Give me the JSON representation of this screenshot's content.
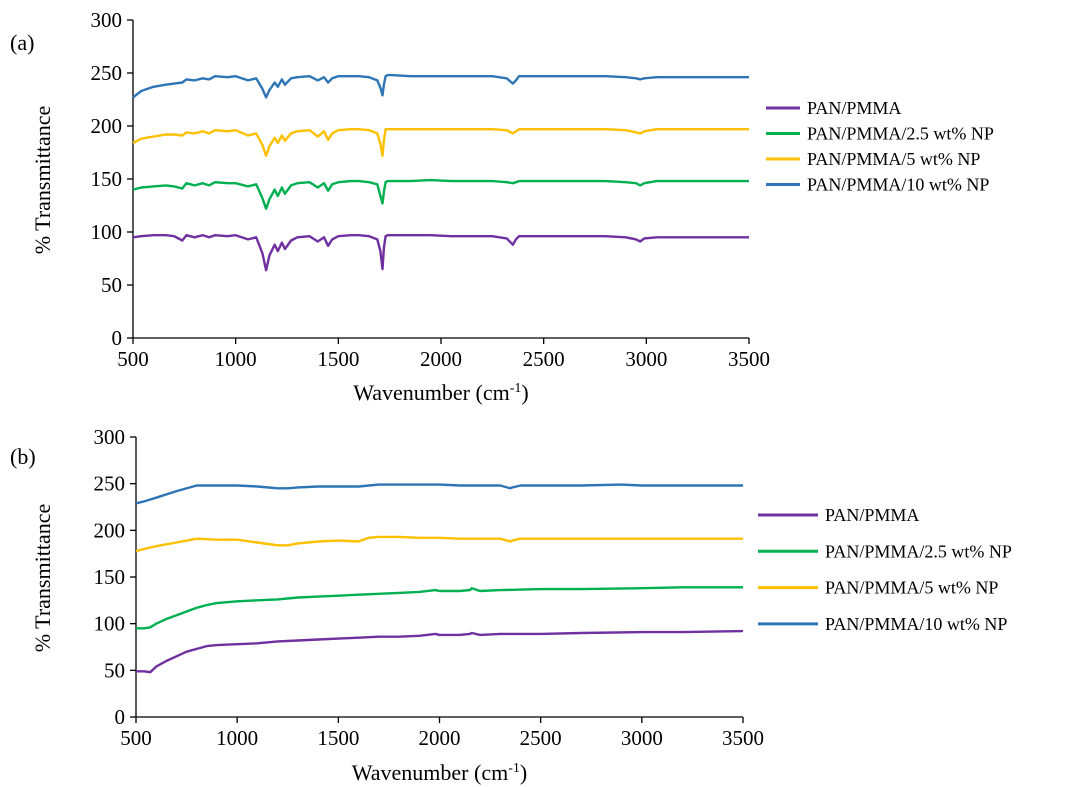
{
  "chart_data": [
    {
      "type": "line",
      "panel_label": "(a)",
      "xlabel": "Wavenumber (cm",
      "xlabel_sup": "-1",
      "xlabel_end": ")",
      "ylabel": "% Transmittance",
      "xlim": [
        500,
        3500
      ],
      "ylim": [
        0,
        300
      ],
      "xticks": [
        "500",
        "1000",
        "1500",
        "2000",
        "2500",
        "3000",
        "3500"
      ],
      "yticks": [
        "0",
        "50",
        "100",
        "150",
        "200",
        "250",
        "300"
      ],
      "grid": false,
      "legend_position": "right",
      "legend": [
        "PAN/PMMA",
        "PAN/PMMA/2.5 wt% NP",
        "PAN/PMMA/5 wt% NP",
        "PAN/PMMA/10 wt% NP"
      ],
      "series": [
        {
          "name": "PAN/PMMA",
          "color": "#7030a0",
          "x": [
            500,
            540,
            600,
            660,
            700,
            740,
            760,
            800,
            840,
            870,
            900,
            960,
            1000,
            1060,
            1100,
            1130,
            1148,
            1165,
            1190,
            1205,
            1225,
            1240,
            1270,
            1300,
            1360,
            1400,
            1430,
            1450,
            1470,
            1500,
            1560,
            1600,
            1650,
            1690,
            1705,
            1715,
            1722,
            1730,
            1740,
            1760,
            1850,
            1950,
            2050,
            2150,
            2250,
            2320,
            2350,
            2365,
            2380,
            2450,
            2600,
            2800,
            2900,
            2950,
            2970,
            2990,
            3050,
            3200,
            3350,
            3500
          ],
          "y": [
            95,
            96,
            97,
            97,
            96,
            92,
            97,
            95,
            97,
            95,
            97,
            96,
            97,
            93,
            95,
            80,
            64,
            78,
            88,
            82,
            90,
            84,
            92,
            95,
            96,
            91,
            95,
            87,
            93,
            96,
            97,
            97,
            96,
            93,
            82,
            65,
            85,
            96,
            97,
            97,
            97,
            97,
            96,
            96,
            96,
            94,
            88,
            93,
            96,
            96,
            96,
            96,
            95,
            93,
            91,
            94,
            95,
            95,
            95,
            95
          ]
        },
        {
          "name": "PAN/PMMA/2.5 wt% NP",
          "color": "#00b050",
          "x": [
            500,
            540,
            600,
            660,
            700,
            740,
            760,
            800,
            840,
            870,
            900,
            960,
            1000,
            1060,
            1100,
            1130,
            1148,
            1165,
            1190,
            1205,
            1225,
            1240,
            1270,
            1300,
            1360,
            1400,
            1430,
            1450,
            1470,
            1500,
            1560,
            1600,
            1650,
            1690,
            1705,
            1715,
            1722,
            1730,
            1740,
            1760,
            1850,
            1950,
            2050,
            2150,
            2250,
            2320,
            2350,
            2365,
            2380,
            2450,
            2600,
            2800,
            2900,
            2950,
            2970,
            2990,
            3050,
            3200,
            3350,
            3500
          ],
          "y": [
            140,
            142,
            143,
            144,
            143,
            141,
            146,
            144,
            146,
            144,
            147,
            146,
            146,
            143,
            145,
            132,
            122,
            131,
            140,
            134,
            142,
            136,
            144,
            146,
            147,
            142,
            146,
            139,
            145,
            147,
            148,
            148,
            147,
            145,
            134,
            127,
            138,
            147,
            148,
            148,
            148,
            149,
            148,
            148,
            148,
            147,
            146,
            147,
            148,
            148,
            148,
            148,
            147,
            146,
            144,
            146,
            148,
            148,
            148,
            148
          ]
        },
        {
          "name": "PAN/PMMA/5 wt% NP",
          "color": "#ffc000",
          "x": [
            500,
            540,
            600,
            660,
            700,
            740,
            760,
            800,
            840,
            870,
            900,
            960,
            1000,
            1060,
            1100,
            1130,
            1148,
            1165,
            1190,
            1205,
            1225,
            1240,
            1270,
            1300,
            1360,
            1400,
            1430,
            1450,
            1470,
            1500,
            1560,
            1600,
            1650,
            1690,
            1705,
            1715,
            1722,
            1730,
            1740,
            1760,
            1850,
            1950,
            2050,
            2150,
            2250,
            2320,
            2350,
            2365,
            2380,
            2450,
            2600,
            2800,
            2900,
            2950,
            2970,
            2990,
            3050,
            3200,
            3350,
            3500
          ],
          "y": [
            184,
            188,
            190,
            192,
            192,
            191,
            194,
            193,
            195,
            193,
            196,
            195,
            196,
            191,
            193,
            182,
            172,
            181,
            189,
            184,
            191,
            186,
            193,
            195,
            196,
            190,
            195,
            187,
            193,
            196,
            197,
            197,
            196,
            193,
            183,
            172,
            186,
            197,
            197,
            197,
            197,
            197,
            197,
            197,
            197,
            196,
            193,
            195,
            197,
            197,
            197,
            197,
            196,
            194,
            193,
            195,
            197,
            197,
            197,
            197
          ]
        },
        {
          "name": "PAN/PMMA/10 wt% NP",
          "color": "#2e75b6",
          "x": [
            500,
            540,
            600,
            660,
            700,
            740,
            760,
            800,
            840,
            870,
            900,
            960,
            1000,
            1060,
            1100,
            1130,
            1148,
            1165,
            1190,
            1205,
            1225,
            1240,
            1270,
            1300,
            1360,
            1400,
            1430,
            1450,
            1470,
            1500,
            1560,
            1600,
            1650,
            1690,
            1705,
            1715,
            1722,
            1730,
            1740,
            1760,
            1850,
            1950,
            2050,
            2150,
            2250,
            2320,
            2350,
            2365,
            2380,
            2450,
            2600,
            2800,
            2900,
            2950,
            2970,
            2990,
            3050,
            3200,
            3350,
            3500
          ],
          "y": [
            227,
            233,
            237,
            239,
            240,
            241,
            244,
            243,
            245,
            244,
            247,
            246,
            247,
            243,
            245,
            235,
            227,
            234,
            241,
            237,
            244,
            239,
            245,
            246,
            247,
            243,
            246,
            241,
            245,
            247,
            247,
            247,
            246,
            243,
            236,
            229,
            239,
            247,
            248,
            248,
            247,
            247,
            247,
            247,
            247,
            245,
            240,
            243,
            247,
            247,
            247,
            247,
            246,
            245,
            244,
            245,
            246,
            246,
            246,
            246
          ]
        }
      ]
    },
    {
      "type": "line",
      "panel_label": "(b)",
      "xlabel": "Wavenumber (cm",
      "xlabel_sup": "-1",
      "xlabel_end": ")",
      "ylabel": "% Transmittance",
      "xlim": [
        500,
        3500
      ],
      "ylim": [
        0,
        300
      ],
      "xticks": [
        "500",
        "1000",
        "1500",
        "2000",
        "2500",
        "3000",
        "3500"
      ],
      "yticks": [
        "0",
        "50",
        "100",
        "150",
        "200",
        "250",
        "300"
      ],
      "grid": false,
      "legend_position": "right",
      "legend": [
        "PAN/PMMA",
        "PAN/PMMA/2.5 wt% NP",
        "PAN/PMMA/5 wt% NP",
        "PAN/PMMA/10 wt% NP"
      ],
      "series": [
        {
          "name": "PAN/PMMA",
          "color": "#7030a0",
          "x": [
            500,
            540,
            570,
            600,
            650,
            700,
            750,
            800,
            850,
            900,
            1000,
            1100,
            1200,
            1300,
            1400,
            1500,
            1600,
            1700,
            1800,
            1900,
            1980,
            2000,
            2100,
            2150,
            2160,
            2200,
            2300,
            2500,
            2700,
            3000,
            3200,
            3500
          ],
          "y": [
            49,
            49,
            48,
            54,
            60,
            65,
            70,
            73,
            76,
            77,
            78,
            79,
            81,
            82,
            83,
            84,
            85,
            86,
            86,
            87,
            89,
            88,
            88,
            89,
            90,
            88,
            89,
            89,
            90,
            91,
            91,
            92
          ]
        },
        {
          "name": "PAN/PMMA/2.5 wt% NP",
          "color": "#00b050",
          "x": [
            500,
            540,
            570,
            600,
            650,
            700,
            750,
            800,
            850,
            900,
            1000,
            1100,
            1200,
            1300,
            1400,
            1500,
            1600,
            1700,
            1800,
            1900,
            1980,
            2000,
            2100,
            2150,
            2160,
            2200,
            2300,
            2500,
            2700,
            3000,
            3200,
            3500
          ],
          "y": [
            95,
            95,
            96,
            100,
            105,
            109,
            113,
            117,
            120,
            122,
            124,
            125,
            126,
            128,
            129,
            130,
            131,
            132,
            133,
            134,
            136,
            135,
            135,
            136,
            138,
            135,
            136,
            137,
            137,
            138,
            139,
            139
          ]
        },
        {
          "name": "PAN/PMMA/5 wt% NP",
          "color": "#ffc000",
          "x": [
            500,
            540,
            600,
            700,
            800,
            900,
            1000,
            1100,
            1200,
            1250,
            1300,
            1400,
            1500,
            1600,
            1650,
            1700,
            1800,
            1900,
            2000,
            2100,
            2200,
            2300,
            2350,
            2360,
            2400,
            2500,
            2700,
            3000,
            3200,
            3500
          ],
          "y": [
            178,
            180,
            183,
            187,
            191,
            190,
            190,
            187,
            184,
            184,
            186,
            188,
            189,
            188,
            192,
            193,
            193,
            192,
            192,
            191,
            191,
            191,
            188,
            189,
            191,
            191,
            191,
            191,
            191,
            191
          ]
        },
        {
          "name": "PAN/PMMA/10 wt% NP",
          "color": "#2e75b6",
          "x": [
            500,
            540,
            600,
            700,
            800,
            900,
            1000,
            1100,
            1200,
            1250,
            1300,
            1400,
            1500,
            1600,
            1700,
            1800,
            1900,
            2000,
            2100,
            2200,
            2300,
            2350,
            2360,
            2400,
            2500,
            2700,
            2900,
            3000,
            3200,
            3500
          ],
          "y": [
            229,
            231,
            235,
            242,
            248,
            248,
            248,
            247,
            245,
            245,
            246,
            247,
            247,
            247,
            249,
            249,
            249,
            249,
            248,
            248,
            248,
            245,
            246,
            248,
            248,
            248,
            249,
            248,
            248,
            248
          ]
        }
      ]
    }
  ]
}
